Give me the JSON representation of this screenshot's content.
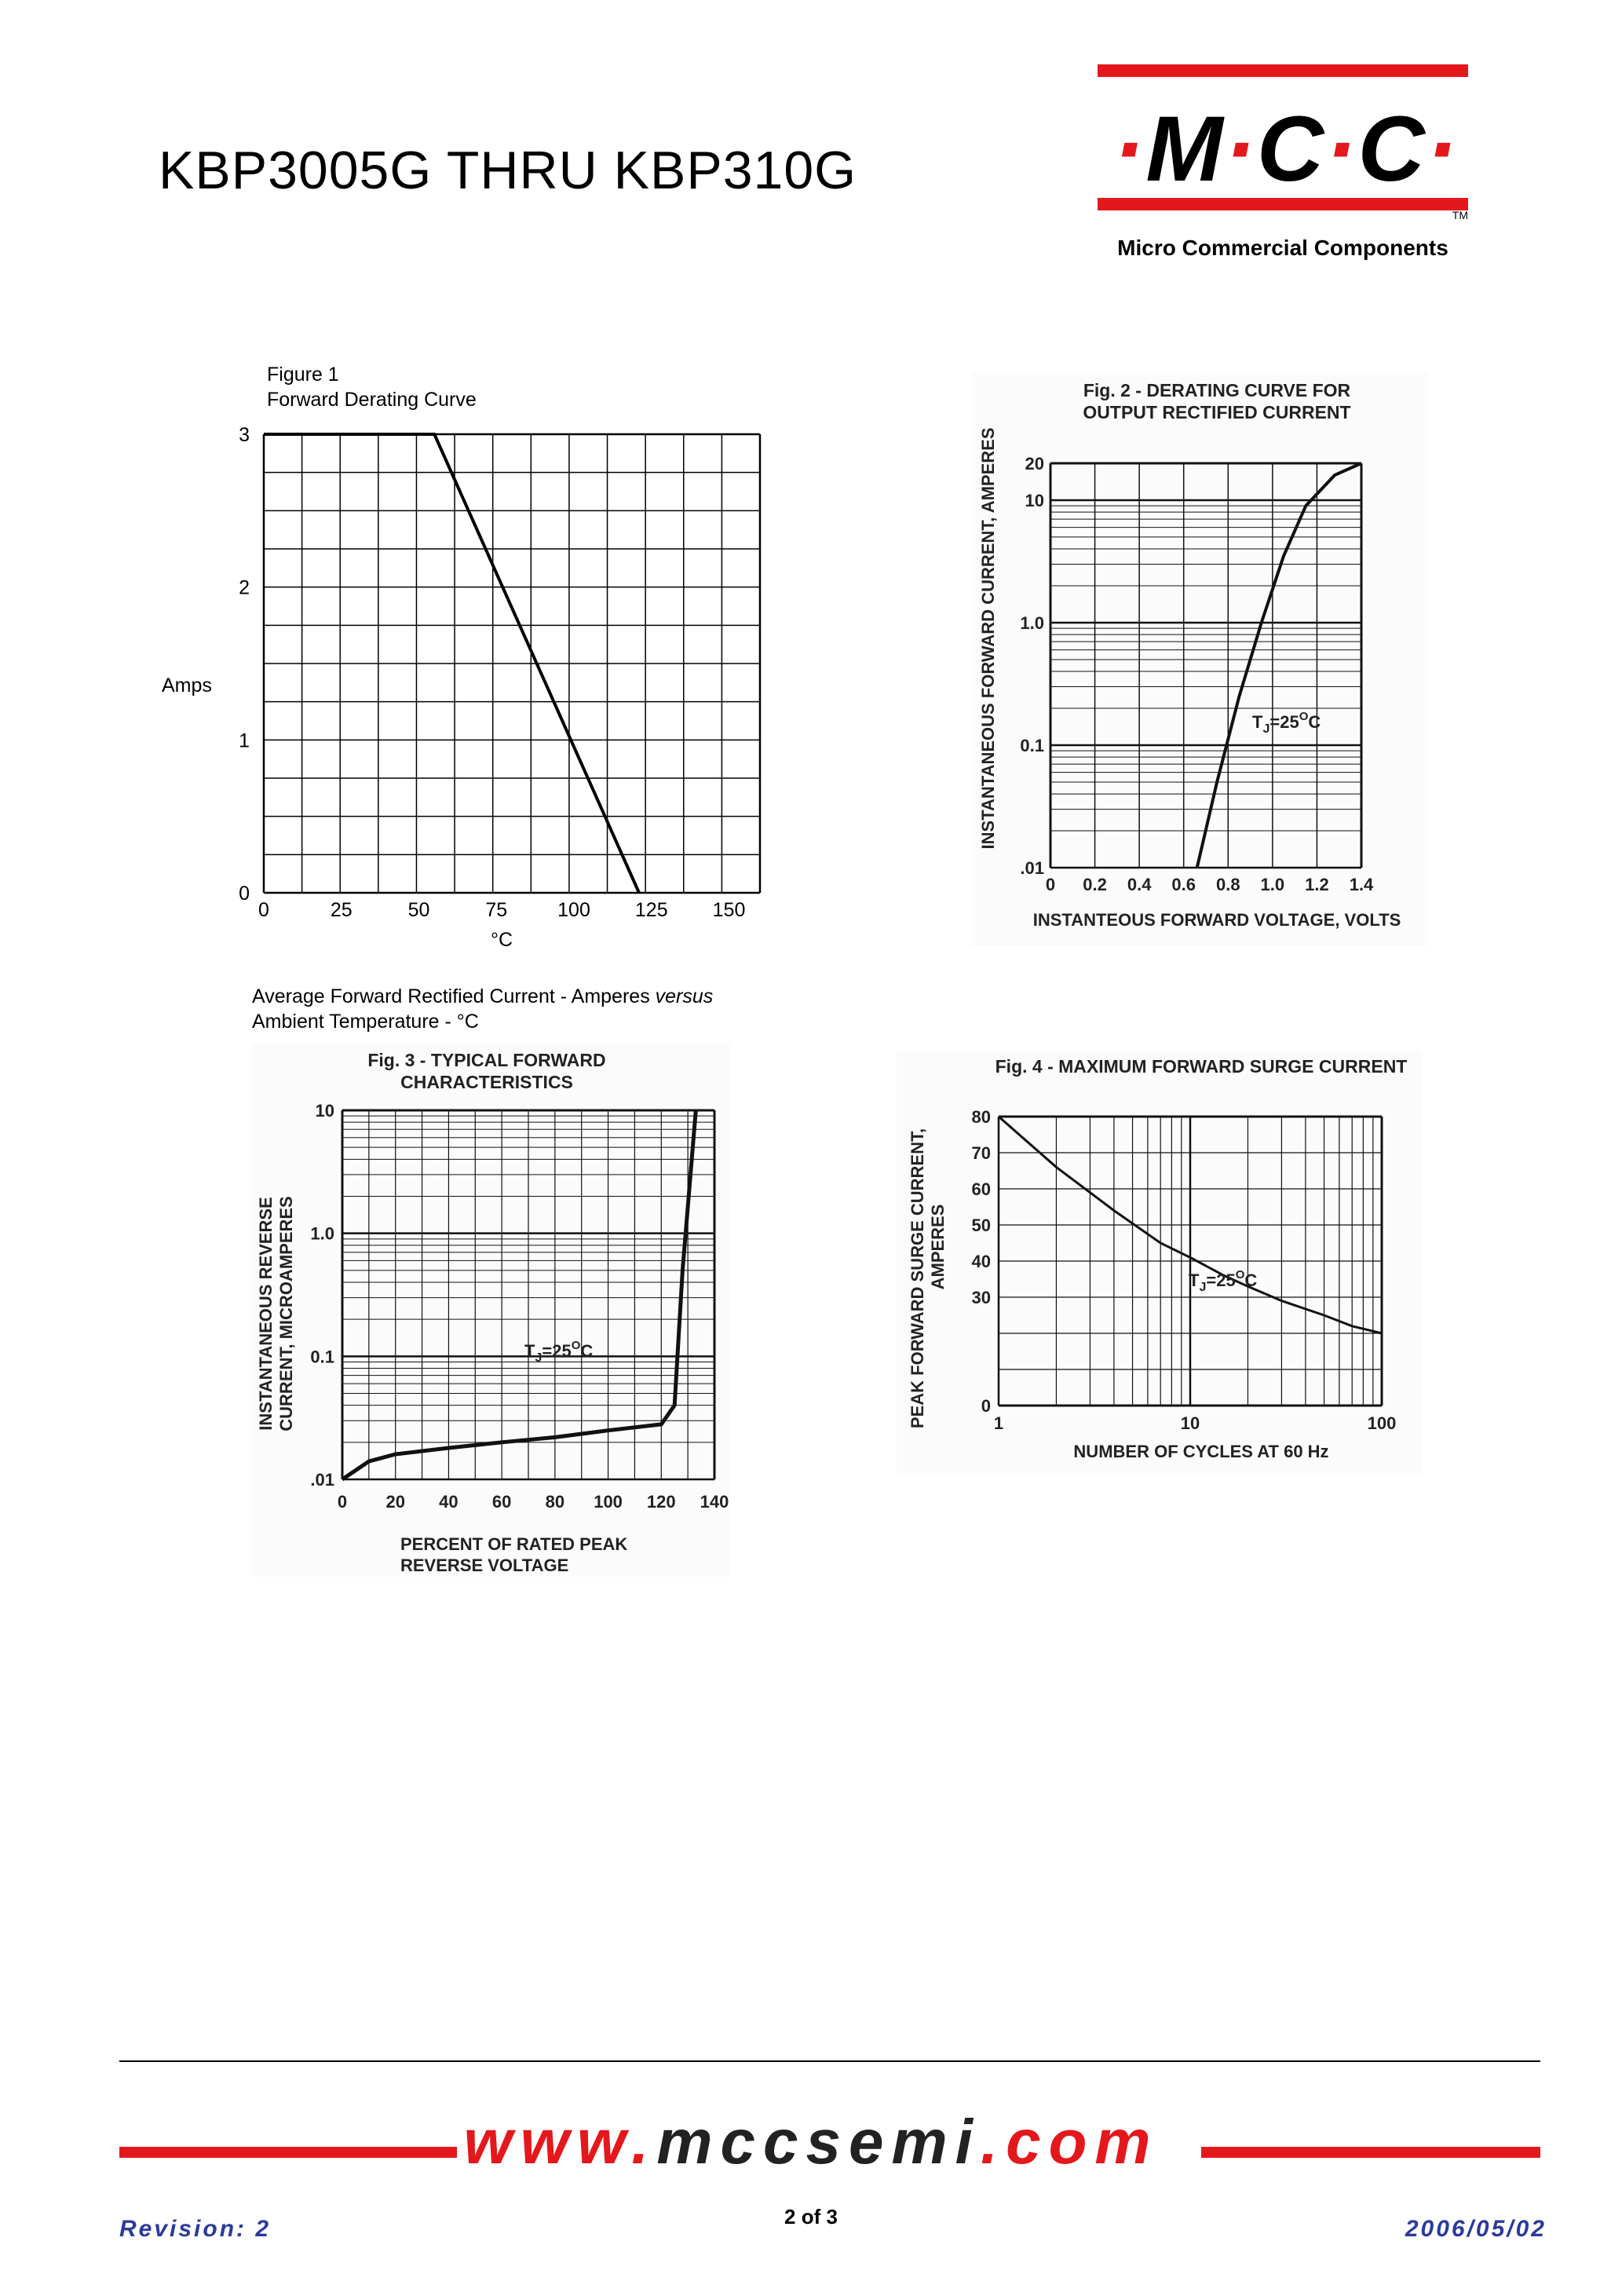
{
  "header": {
    "title": "KBP3005G THRU KBP310G",
    "logo": {
      "letters": [
        "M",
        "C",
        "C"
      ],
      "trademark": "TM",
      "company": "Micro Commercial Components",
      "accent_color": "#e4181c"
    }
  },
  "chart_data": [
    {
      "type": "line",
      "id": "fig1",
      "title": "Figure 1",
      "subtitle": "Forward Derating Curve",
      "xlabel": "°C",
      "ylabel": "Amps",
      "xlim": [
        0,
        160
      ],
      "ylim": [
        0,
        3
      ],
      "x_ticks": [
        "0",
        "25",
        "50",
        "75",
        "100",
        "125",
        "150"
      ],
      "y_ticks": [
        "0",
        "1",
        "2",
        "3"
      ],
      "grid": true,
      "caption_line1": "Average Forward Rectified Current  -  Amperes ",
      "caption_italic": "versus",
      "caption_line2": "Ambient Temperature  - °C",
      "series": [
        {
          "x": [
            0,
            55,
            121
          ],
          "y": [
            3,
            3,
            0
          ]
        }
      ]
    },
    {
      "type": "line",
      "id": "fig2",
      "title_line1": "Fig. 2 - DERATING CURVE FOR",
      "title_line2": "OUTPUT RECTIFIED CURRENT",
      "xlabel": "INSTANTEOUS FORWARD VOLTAGE,  VOLTS",
      "ylabel": "INSTANTANEOUS FORWARD CURRENT, AMPERES",
      "xlim": [
        0,
        1.4
      ],
      "ylim": [
        0.01,
        20
      ],
      "y_scale": "log",
      "x_ticks": [
        "0",
        "0.2",
        "0.4",
        "0.6",
        "0.8",
        "1.0",
        "1.2",
        "1.4"
      ],
      "y_ticks": [
        "20",
        "10",
        "1.0",
        "0.1",
        ".01"
      ],
      "annotation": "T",
      "annotation_sub": "J",
      "annotation_rest": "=25",
      "annotation_sup": "O",
      "annotation_unit": "C",
      "grid": true,
      "series": [
        {
          "x": [
            0.66,
            0.75,
            0.85,
            0.95,
            1.05,
            1.15,
            1.28,
            1.4
          ],
          "y": [
            0.01,
            0.05,
            0.25,
            1.0,
            3.5,
            9.0,
            16,
            20
          ]
        }
      ]
    },
    {
      "type": "line",
      "id": "fig3",
      "title_line1": "Fig. 3 - TYPICAL FORWARD",
      "title_line2": "CHARACTERISTICS",
      "xlabel_line1": "PERCENT OF RATED PEAK",
      "xlabel_line2": "REVERSE VOLTAGE",
      "ylabel_line1": "INSTANTANEOUS REVERSE",
      "ylabel_line2": "CURRENT, MICROAMPERES",
      "xlim": [
        0,
        140
      ],
      "ylim": [
        0.01,
        10
      ],
      "y_scale": "log",
      "x_ticks": [
        "0",
        "20",
        "40",
        "60",
        "80",
        "100",
        "120",
        "140"
      ],
      "y_ticks": [
        "10",
        "1.0",
        "0.1",
        ".01"
      ],
      "annotation": "T",
      "annotation_sub": "J",
      "annotation_rest": "=25",
      "annotation_sup": "O",
      "annotation_unit": "C",
      "grid": true,
      "series": [
        {
          "x": [
            0,
            10,
            20,
            40,
            60,
            80,
            100,
            120,
            125,
            128,
            133
          ],
          "y": [
            0.01,
            0.014,
            0.016,
            0.018,
            0.02,
            0.022,
            0.025,
            0.028,
            0.04,
            0.5,
            10
          ]
        }
      ]
    },
    {
      "type": "line",
      "id": "fig4",
      "title": "Fig. 4 - MAXIMUM FORWARD SURGE CURRENT",
      "xlabel": "NUMBER OF CYCLES AT 60 Hz",
      "ylabel_line1": "PEAK FORWARD SURGE CURRENT,",
      "ylabel_line2": "AMPERES",
      "xlim": [
        1,
        100
      ],
      "x_scale": "log",
      "ylim": [
        0,
        80
      ],
      "x_ticks": [
        "1",
        "10",
        "100"
      ],
      "y_ticks": [
        "80",
        "70",
        "60",
        "50",
        "40",
        "30",
        "0"
      ],
      "annotation": "T",
      "annotation_sub": "J",
      "annotation_rest": "=25",
      "annotation_sup": "O",
      "annotation_unit": "C",
      "grid": true,
      "series": [
        {
          "x": [
            1,
            2,
            4,
            7,
            10,
            15,
            20,
            30,
            50,
            70,
            100
          ],
          "y": [
            80,
            66,
            54,
            45,
            41,
            36,
            33,
            29,
            25,
            22,
            20
          ]
        }
      ]
    }
  ],
  "footer": {
    "website_prefix": "www.",
    "website_domain": "mccsemi",
    "website_suffix": ".com",
    "revision": "Revision: 2",
    "page": "2 of 3",
    "date": "2006/05/02"
  }
}
